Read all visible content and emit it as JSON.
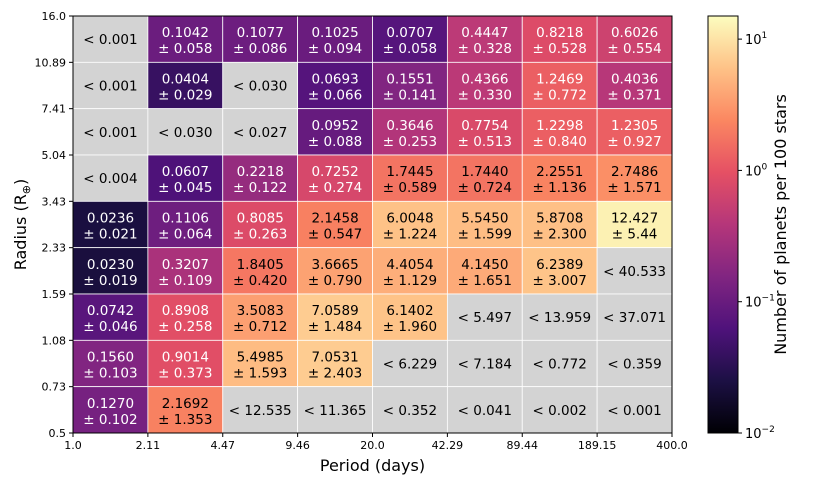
{
  "chart_data": {
    "type": "heatmap",
    "title": "",
    "xlabel": "Period (days)",
    "ylabel": "Radius (R⊕)",
    "x_ticks": [
      "1.0",
      "2.11",
      "4.47",
      "9.46",
      "20.0",
      "42.29",
      "89.44",
      "189.15",
      "400.0"
    ],
    "y_ticks": [
      "0.5",
      "0.73",
      "1.08",
      "1.59",
      "2.33",
      "3.43",
      "5.04",
      "7.41",
      "10.89",
      "16.0"
    ],
    "colorbar": {
      "label": "Number of planets per 100 stars",
      "scale": "log",
      "min": 0.01,
      "max": 15,
      "ticks": [
        {
          "value": 0.01,
          "base": "10",
          "exp": "−2"
        },
        {
          "value": 0.1,
          "base": "10",
          "exp": "−1"
        },
        {
          "value": 1,
          "base": "10",
          "exp": "0"
        },
        {
          "value": 10,
          "base": "10",
          "exp": "1"
        }
      ]
    },
    "rows": [
      {
        "radius_bin": "10.89-16.0",
        "cells": [
          {
            "upper": "< 0.001"
          },
          {
            "value": 0.1042,
            "line1": "0.1042",
            "line2": "± 0.058"
          },
          {
            "value": 0.1077,
            "line1": "0.1077",
            "line2": "± 0.086"
          },
          {
            "value": 0.1025,
            "line1": "0.1025",
            "line2": "± 0.094"
          },
          {
            "value": 0.0707,
            "line1": "0.0707",
            "line2": "± 0.058"
          },
          {
            "value": 0.4447,
            "line1": "0.4447",
            "line2": "± 0.328"
          },
          {
            "value": 0.8218,
            "line1": "0.8218",
            "line2": "± 0.528"
          },
          {
            "value": 0.6026,
            "line1": "0.6026",
            "line2": "± 0.554"
          }
        ]
      },
      {
        "radius_bin": "7.41-10.89",
        "cells": [
          {
            "upper": "< 0.001"
          },
          {
            "value": 0.0404,
            "line1": "0.0404",
            "line2": "± 0.029"
          },
          {
            "upper": "< 0.030"
          },
          {
            "value": 0.0693,
            "line1": "0.0693",
            "line2": "± 0.066"
          },
          {
            "value": 0.1551,
            "line1": "0.1551",
            "line2": "± 0.141"
          },
          {
            "value": 0.4366,
            "line1": "0.4366",
            "line2": "± 0.330"
          },
          {
            "value": 1.2469,
            "line1": "1.2469",
            "line2": "± 0.772"
          },
          {
            "value": 0.4036,
            "line1": "0.4036",
            "line2": "± 0.371"
          }
        ]
      },
      {
        "radius_bin": "5.04-7.41",
        "cells": [
          {
            "upper": "< 0.001"
          },
          {
            "upper": "< 0.030"
          },
          {
            "upper": "< 0.027"
          },
          {
            "value": 0.0952,
            "line1": "0.0952",
            "line2": "± 0.088"
          },
          {
            "value": 0.3646,
            "line1": "0.3646",
            "line2": "± 0.253"
          },
          {
            "value": 0.7754,
            "line1": "0.7754",
            "line2": "± 0.513"
          },
          {
            "value": 1.2298,
            "line1": "1.2298",
            "line2": "± 0.840"
          },
          {
            "value": 1.2305,
            "line1": "1.2305",
            "line2": "± 0.927"
          }
        ]
      },
      {
        "radius_bin": "3.43-5.04",
        "cells": [
          {
            "upper": "< 0.004"
          },
          {
            "value": 0.0607,
            "line1": "0.0607",
            "line2": "± 0.045"
          },
          {
            "value": 0.2218,
            "line1": "0.2218",
            "line2": "± 0.122"
          },
          {
            "value": 0.7252,
            "line1": "0.7252",
            "line2": "± 0.274"
          },
          {
            "value": 1.7445,
            "line1": "1.7445",
            "line2": "± 0.589"
          },
          {
            "value": 1.744,
            "line1": "1.7440",
            "line2": "± 0.724"
          },
          {
            "value": 2.2551,
            "line1": "2.2551",
            "line2": "± 1.136"
          },
          {
            "value": 2.7486,
            "line1": "2.7486",
            "line2": "± 1.571"
          }
        ]
      },
      {
        "radius_bin": "2.33-3.43",
        "cells": [
          {
            "value": 0.0236,
            "line1": "0.0236",
            "line2": "± 0.021"
          },
          {
            "value": 0.1106,
            "line1": "0.1106",
            "line2": "± 0.064"
          },
          {
            "value": 0.8085,
            "line1": "0.8085",
            "line2": "± 0.263"
          },
          {
            "value": 2.1458,
            "line1": "2.1458",
            "line2": "± 0.547"
          },
          {
            "value": 6.0048,
            "line1": "6.0048",
            "line2": "± 1.224"
          },
          {
            "value": 5.545,
            "line1": "5.5450",
            "line2": "± 1.599"
          },
          {
            "value": 5.8708,
            "line1": "5.8708",
            "line2": "± 2.300"
          },
          {
            "value": 12.427,
            "line1": "12.427",
            "line2": "± 5.44"
          }
        ]
      },
      {
        "radius_bin": "1.59-2.33",
        "cells": [
          {
            "value": 0.023,
            "line1": "0.0230",
            "line2": "± 0.019"
          },
          {
            "value": 0.3207,
            "line1": "0.3207",
            "line2": "± 0.109"
          },
          {
            "value": 1.8405,
            "line1": "1.8405",
            "line2": "± 0.420"
          },
          {
            "value": 3.6665,
            "line1": "3.6665",
            "line2": "± 0.790"
          },
          {
            "value": 4.4054,
            "line1": "4.4054",
            "line2": "± 1.129"
          },
          {
            "value": 4.145,
            "line1": "4.1450",
            "line2": "± 1.651"
          },
          {
            "value": 6.2389,
            "line1": "6.2389",
            "line2": "± 3.007"
          },
          {
            "upper": "< 40.533"
          }
        ]
      },
      {
        "radius_bin": "1.08-1.59",
        "cells": [
          {
            "value": 0.0742,
            "line1": "0.0742",
            "line2": "± 0.046"
          },
          {
            "value": 0.8908,
            "line1": "0.8908",
            "line2": "± 0.258"
          },
          {
            "value": 3.5083,
            "line1": "3.5083",
            "line2": "± 0.712"
          },
          {
            "value": 7.0589,
            "line1": "7.0589",
            "line2": "± 1.484"
          },
          {
            "value": 6.1402,
            "line1": "6.1402",
            "line2": "± 1.960"
          },
          {
            "upper": "< 5.497"
          },
          {
            "upper": "< 13.959"
          },
          {
            "upper": "< 37.071"
          }
        ]
      },
      {
        "radius_bin": "0.73-1.08",
        "cells": [
          {
            "value": 0.156,
            "line1": "0.1560",
            "line2": "± 0.103"
          },
          {
            "value": 0.9014,
            "line1": "0.9014",
            "line2": "± 0.373"
          },
          {
            "value": 5.4985,
            "line1": "5.4985",
            "line2": "± 1.593"
          },
          {
            "value": 7.0531,
            "line1": "7.0531",
            "line2": "± 2.403"
          },
          {
            "upper": "< 6.229"
          },
          {
            "upper": "< 7.184"
          },
          {
            "upper": "< 0.772"
          },
          {
            "upper": "< 0.359"
          }
        ]
      },
      {
        "radius_bin": "0.5-0.73",
        "cells": [
          {
            "value": 0.127,
            "line1": "0.1270",
            "line2": "± 0.102"
          },
          {
            "value": 2.1692,
            "line1": "2.1692",
            "line2": "± 1.353"
          },
          {
            "upper": "< 12.535"
          },
          {
            "upper": "< 11.365"
          },
          {
            "upper": "< 0.352"
          },
          {
            "upper": "< 0.041"
          },
          {
            "upper": "< 0.002"
          },
          {
            "upper": "< 0.001"
          }
        ]
      }
    ]
  },
  "colors": {
    "upper_limit_cell": "#d3d3d3",
    "cell_border": "#ffffff",
    "axis": "#000000",
    "colormap": [
      "#000004",
      "#1c1044",
      "#4f127b",
      "#812581",
      "#b5367a",
      "#e55064",
      "#fb8761",
      "#fec287",
      "#fcfdbf"
    ]
  }
}
